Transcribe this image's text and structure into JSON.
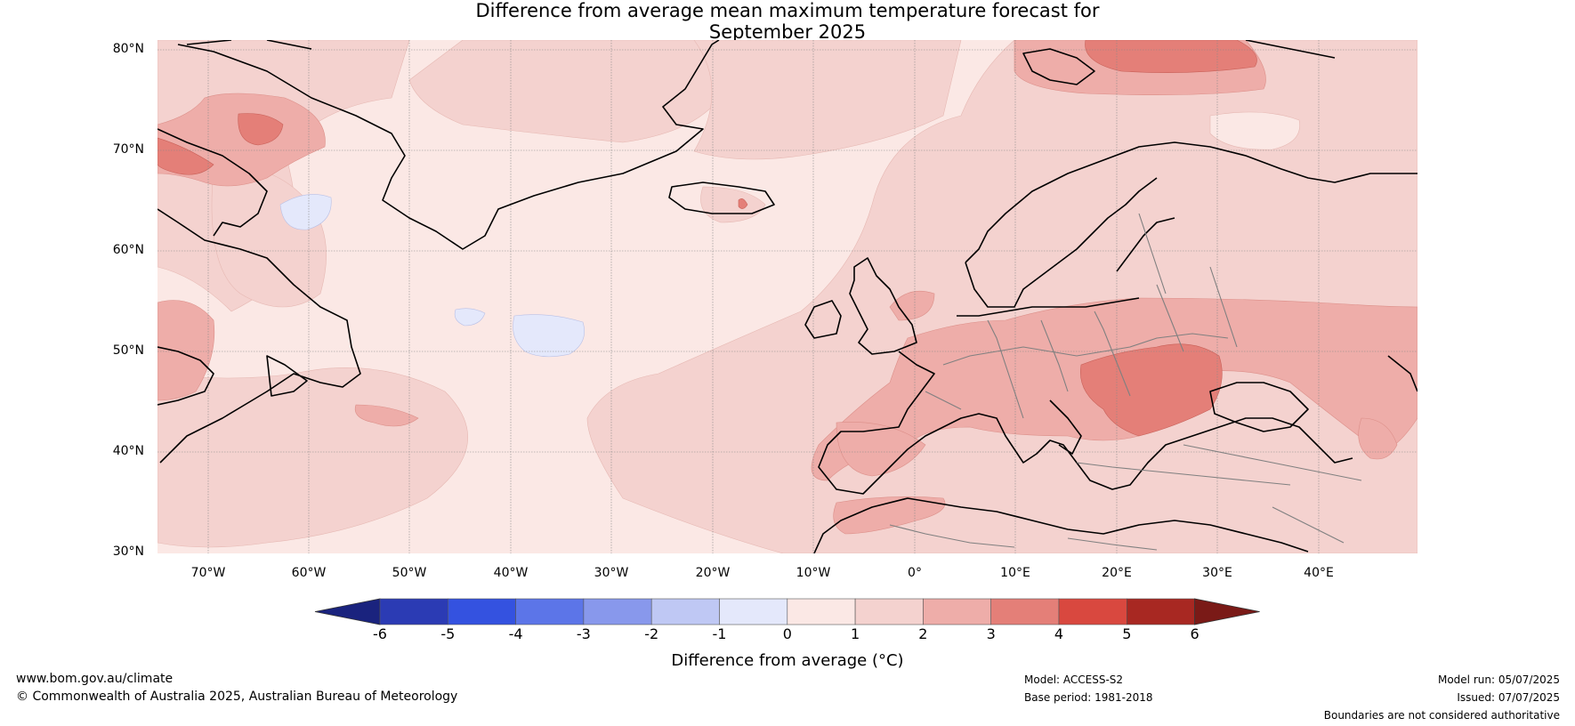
{
  "title": {
    "line1": "Difference from average mean maximum temperature forecast for",
    "line2": "September 2025"
  },
  "map": {
    "lat_labels": [
      "80°N",
      "70°N",
      "60°N",
      "50°N",
      "40°N",
      "30°N"
    ],
    "lon_labels": [
      "70°W",
      "60°W",
      "50°W",
      "40°W",
      "30°W",
      "20°W",
      "10°W",
      "0°",
      "10°E",
      "20°E",
      "30°E",
      "40°E"
    ],
    "colors": {
      "ocean_base": "#fbe8e5",
      "anom_0_1": "#fbe8e5",
      "anom_1_2": "#f4d2cf",
      "anom_2_3": "#eeada9",
      "anom_3_4": "#e47f78",
      "anom_neg": "#e4e8fb",
      "coast": "#000000",
      "border": "#808080"
    }
  },
  "colorbar": {
    "label": "Difference from average (°C)",
    "ticks": [
      "-6",
      "-5",
      "-4",
      "-3",
      "-2",
      "-1",
      "0",
      "1",
      "2",
      "3",
      "4",
      "5",
      "6"
    ],
    "colors": [
      "#1a237e",
      "#2b3bb4",
      "#3452e0",
      "#5c75e8",
      "#8898ec",
      "#bfc8f4",
      "#e4e8fb",
      "#fbe8e5",
      "#f4d2cf",
      "#eeada9",
      "#e47f78",
      "#d9483f",
      "#a82822",
      "#7a1a17"
    ]
  },
  "footer": {
    "website": "www.bom.gov.au/climate",
    "copyright": "© Commonwealth of Australia 2025, Australian Bureau of Meteorology",
    "model": "Model: ACCESS-S2",
    "base_period": "Base period: 1981-2018",
    "model_run": "Model run: 05/07/2025",
    "issued": "Issued: 07/07/2025",
    "disclaimer": "Boundaries are not considered authoritative"
  }
}
